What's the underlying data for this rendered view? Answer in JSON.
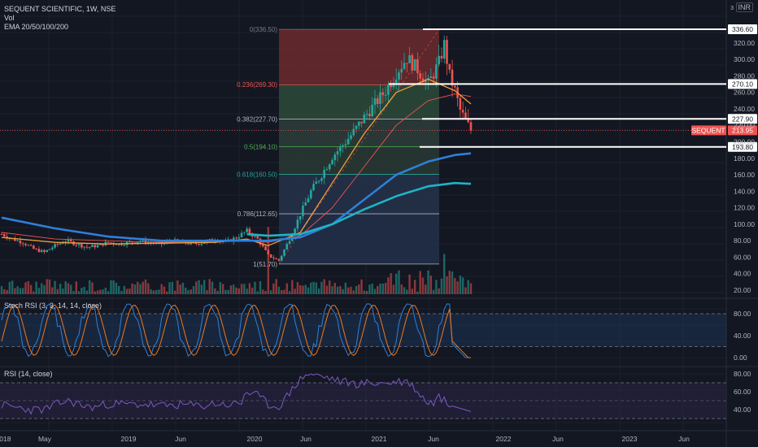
{
  "header": {
    "symbol_line": "SEQUENT SCIENTIFIC, 1W, NSE",
    "vol_label": "Vol",
    "ema_label": "EMA 20/50/100/200",
    "currency": "INR",
    "currency_sub": "3"
  },
  "stoch_panel": {
    "title": "Stoch RSI (3, 3, 14, 14, close)",
    "ticks": [
      "80.00",
      "40.00",
      "0.00"
    ]
  },
  "rsi_panel": {
    "title": "RSI (14, close)",
    "ticks": [
      "80.00",
      "60.00",
      "40.00"
    ]
  },
  "price_axis": {
    "ticks": [
      "320.00",
      "300.00",
      "280.00",
      "260.00",
      "240.00",
      "220.00",
      "200.00",
      "180.00",
      "160.00",
      "140.00",
      "120.00",
      "100.00",
      "80.00",
      "60.00",
      "40.00",
      "20.00"
    ]
  },
  "time_axis": [
    "2018",
    "May",
    "2019",
    "Jun",
    "2020",
    "Jun",
    "2021",
    "Jun",
    "2022",
    "Jun",
    "2023",
    "Jun"
  ],
  "price_badges": [
    {
      "text": "336.60",
      "value": 336.6,
      "kind": "level"
    },
    {
      "text": "270.10",
      "value": 270.1,
      "kind": "level"
    },
    {
      "text": "227.90",
      "value": 227.9,
      "kind": "level"
    },
    {
      "text": "193.80",
      "value": 193.8,
      "kind": "level"
    }
  ],
  "last_price": {
    "symbol": "SEQUENT",
    "text": "213.95",
    "value": 213.95,
    "color": "#ef5350"
  },
  "colors": {
    "up": "#26a69a",
    "down": "#ef5350",
    "ema20": "#f0a03a",
    "ema50": "#ef5350",
    "ema100": "#2f7fd8",
    "ema200": "#1fb4c4",
    "stoch_k": "#2f7fd8",
    "stoch_d": "#f0771a",
    "rsi": "#7e57c2",
    "fib_top": "#6b2a2e",
    "fib_mid": "#2e4a3a",
    "fib_low": "#1e3550"
  },
  "chart_data": {
    "type": "candlestick",
    "indicators": [
      "Vol",
      "EMA 20",
      "EMA 50",
      "EMA 100",
      "EMA 200",
      "Stoch RSI",
      "RSI"
    ],
    "fib_levels": [
      {
        "ratio": "0",
        "price": 336.5,
        "text": "0(336.50)",
        "color": "#787b86"
      },
      {
        "ratio": "0.236",
        "price": 269.3,
        "text": "0.236(269.30)",
        "color": "#ef5350"
      },
      {
        "ratio": "0.382",
        "price": 227.7,
        "text": "0.382(227.70)",
        "color": "#b2b5be"
      },
      {
        "ratio": "0.5",
        "price": 194.1,
        "text": "0.5(194.10)",
        "color": "#4caf50"
      },
      {
        "ratio": "0.618",
        "price": 160.5,
        "text": "0.618(160.50)",
        "color": "#26a69a"
      },
      {
        "ratio": "0.786",
        "price": 112.65,
        "text": "0.786(112.65)",
        "color": "#b2b5be"
      },
      {
        "ratio": "1",
        "price": 51.7,
        "text": "1(51.70)",
        "color": "#b2b5be"
      }
    ],
    "close_path": [
      [
        0,
        88
      ],
      [
        4,
        82
      ],
      [
        8,
        78
      ],
      [
        12,
        70
      ],
      [
        16,
        66
      ],
      [
        20,
        74
      ],
      [
        24,
        80
      ],
      [
        28,
        76
      ],
      [
        32,
        72
      ],
      [
        36,
        74
      ],
      [
        40,
        78
      ],
      [
        44,
        76
      ],
      [
        48,
        78
      ],
      [
        52,
        80
      ],
      [
        56,
        78
      ],
      [
        60,
        76
      ],
      [
        64,
        80
      ],
      [
        68,
        78
      ],
      [
        72,
        76
      ],
      [
        76,
        78
      ],
      [
        80,
        82
      ],
      [
        84,
        78
      ],
      [
        88,
        84
      ],
      [
        92,
        92
      ],
      [
        96,
        82
      ],
      [
        100,
        62
      ],
      [
        104,
        56
      ],
      [
        108,
        82
      ],
      [
        112,
        112
      ],
      [
        116,
        140
      ],
      [
        120,
        160
      ],
      [
        124,
        182
      ],
      [
        128,
        196
      ],
      [
        132,
        212
      ],
      [
        136,
        230
      ],
      [
        140,
        246
      ],
      [
        144,
        262
      ],
      [
        148,
        284
      ],
      [
        152,
        302
      ],
      [
        156,
        288
      ],
      [
        160,
        270
      ],
      [
        164,
        296
      ],
      [
        166,
        318
      ],
      [
        168,
        280
      ],
      [
        170,
        262
      ],
      [
        172,
        238
      ],
      [
        174,
        226
      ],
      [
        176,
        214
      ]
    ],
    "ema20": [
      [
        0,
        84
      ],
      [
        20,
        78
      ],
      [
        40,
        76
      ],
      [
        60,
        77
      ],
      [
        80,
        78
      ],
      [
        92,
        82
      ],
      [
        100,
        74
      ],
      [
        112,
        90
      ],
      [
        124,
        150
      ],
      [
        136,
        210
      ],
      [
        148,
        260
      ],
      [
        160,
        276
      ],
      [
        170,
        262
      ],
      [
        176,
        246
      ]
    ],
    "ema50": [
      [
        0,
        90
      ],
      [
        20,
        82
      ],
      [
        40,
        80
      ],
      [
        60,
        78
      ],
      [
        80,
        79
      ],
      [
        92,
        80
      ],
      [
        100,
        78
      ],
      [
        112,
        86
      ],
      [
        124,
        120
      ],
      [
        136,
        170
      ],
      [
        148,
        220
      ],
      [
        160,
        250
      ],
      [
        170,
        258
      ],
      [
        176,
        255
      ]
    ],
    "ema100": [
      [
        0,
        108
      ],
      [
        20,
        95
      ],
      [
        40,
        85
      ],
      [
        60,
        80
      ],
      [
        80,
        80
      ],
      [
        92,
        80
      ],
      [
        100,
        80
      ],
      [
        112,
        84
      ],
      [
        124,
        100
      ],
      [
        136,
        130
      ],
      [
        148,
        160
      ],
      [
        160,
        176
      ],
      [
        170,
        184
      ],
      [
        176,
        186
      ]
    ],
    "ema200": [
      [
        92,
        88
      ],
      [
        100,
        86
      ],
      [
        112,
        88
      ],
      [
        124,
        100
      ],
      [
        136,
        118
      ],
      [
        148,
        134
      ],
      [
        160,
        146
      ],
      [
        170,
        150
      ],
      [
        176,
        149
      ]
    ],
    "volume_spikes": [
      [
        100,
        0.92
      ],
      [
        166,
        0.55
      ],
      [
        176,
        0.15
      ]
    ],
    "stoch_k_last": 0.5,
    "rsi_last": 39,
    "price_range": [
      0,
      345
    ]
  }
}
